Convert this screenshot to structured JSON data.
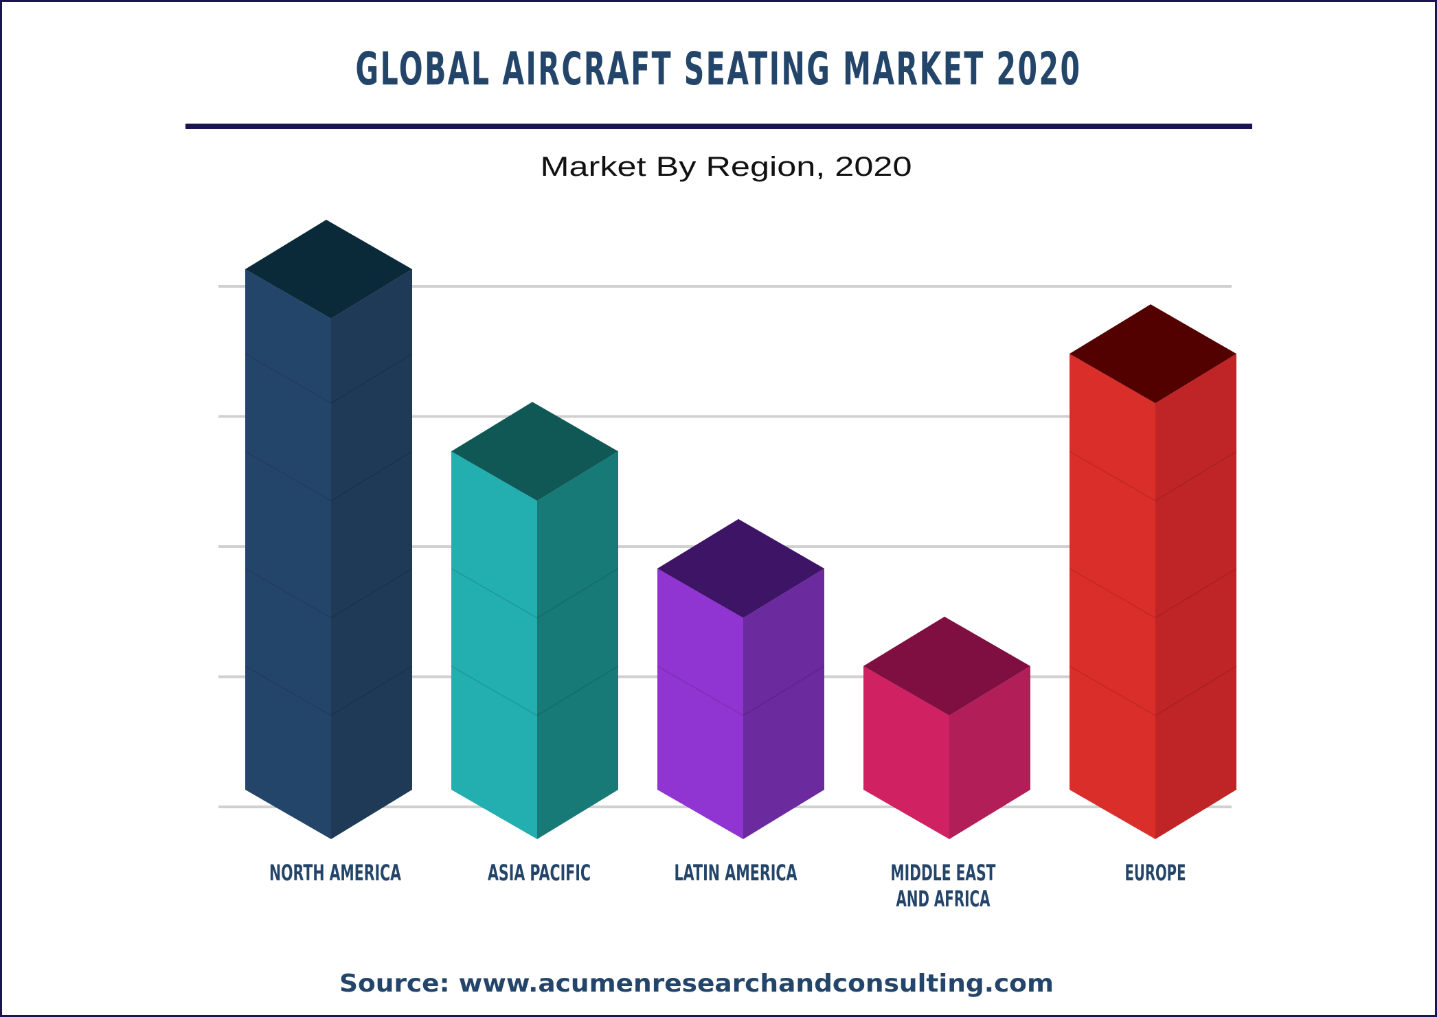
{
  "header": {
    "title": "GLOBAL AIRCRAFT SEATING MARKET 2020",
    "subtitle": "Market By Region, 2020"
  },
  "footer": {
    "source": "Source: www.acumenresearchandconsulting.com"
  },
  "colors": {
    "frame": "#1a1550",
    "rule": "#1a1550",
    "gridline": "#d0d0d0",
    "text": "#24456a"
  },
  "chart_data": {
    "type": "bar",
    "style": "3d-isometric",
    "title": "Market By Region, 2020",
    "categories": [
      "NORTH AMERICA",
      "ASIA PACIFIC",
      "LATIN AMERICA",
      "MIDDLE EAST AND AFRICA",
      "EUROPE"
    ],
    "category_lines": [
      [
        "NORTH AMERICA"
      ],
      [
        "ASIA PACIFIC"
      ],
      [
        "LATIN AMERICA"
      ],
      [
        "MIDDLE EAST",
        "AND AFRICA"
      ],
      [
        "EUROPE"
      ]
    ],
    "values": [
      4.0,
      2.6,
      1.7,
      0.95,
      3.35
    ],
    "ylim": [
      0,
      4
    ],
    "y_ticks_shown": false,
    "grid": true,
    "legend": "none",
    "bar_colors": [
      {
        "front": "#24456a",
        "side": "#1e3a56",
        "top": "#0a2a3a"
      },
      {
        "front": "#23aeb0",
        "side": "#177a77",
        "top": "#105856"
      },
      {
        "front": "#9035d1",
        "side": "#6b2a9e",
        "top": "#3e1466"
      },
      {
        "front": "#d02163",
        "side": "#b21e58",
        "top": "#7f0f40"
      },
      {
        "front": "#da2e2a",
        "side": "#bf2526",
        "top": "#520000"
      }
    ]
  }
}
